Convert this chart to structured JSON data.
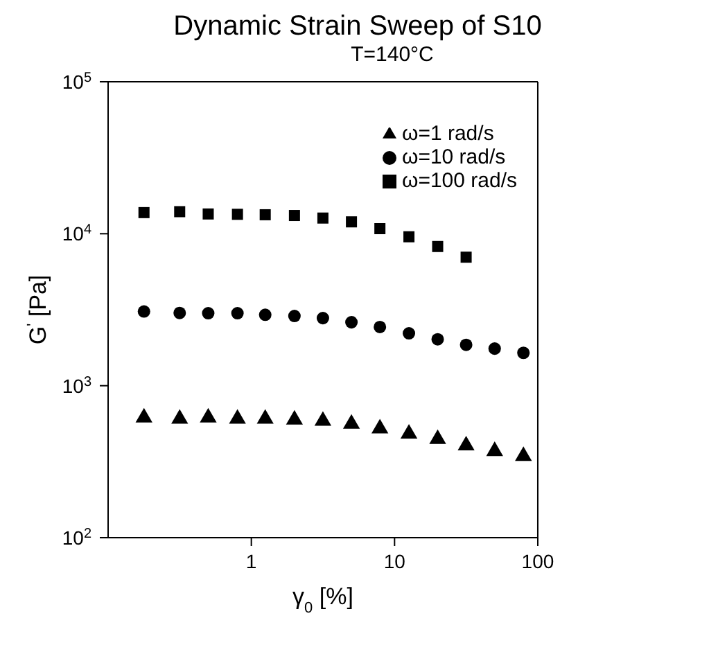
{
  "chart_data": {
    "type": "scatter",
    "title": "Dynamic Strain Sweep of S10",
    "subtitle": "T=140°C",
    "xlabel": "γ$_{0}$ [%]",
    "ylabel": "G$^{'}$ [Pa]",
    "x": [
      0.178,
      0.316,
      0.5,
      0.8,
      1.25,
      2,
      3.16,
      5,
      7.9,
      12.6,
      20,
      31.6,
      50,
      79.4
    ],
    "series": [
      {
        "name": "ω=1 rad/s",
        "color": "#000000",
        "marker": "triangle",
        "values": [
          617,
          605,
          617,
          605,
          605,
          597,
          586,
          561,
          522,
          483,
          445,
          404,
          371,
          344
        ]
      },
      {
        "name": "ω=10 rad/s",
        "color": "#000000",
        "marker": "circle",
        "values": [
          3080,
          3010,
          3000,
          3000,
          2930,
          2875,
          2785,
          2615,
          2433,
          2212,
          2020,
          1858,
          1754,
          1645
        ]
      },
      {
        "name": "ω=100 rad/s",
        "color": "#000000",
        "marker": "square",
        "values": [
          13770,
          13970,
          13490,
          13420,
          13330,
          13180,
          12680,
          11970,
          10800,
          9550,
          8240,
          7010,
          null,
          null
        ]
      }
    ],
    "log": "xy",
    "xlim": [
      0.1,
      100
    ],
    "xticks": [
      1,
      10,
      100
    ],
    "ylim": [
      100,
      100000
    ],
    "yticks": [
      {
        "value": 100,
        "label": "10$^{2}$"
      },
      {
        "value": 1000,
        "label": "10$^{3}$"
      },
      {
        "value": 10000,
        "label": "10$^{4}$"
      },
      {
        "value": 100000,
        "label": "10$^{5}$"
      }
    ],
    "legend": "top right"
  }
}
